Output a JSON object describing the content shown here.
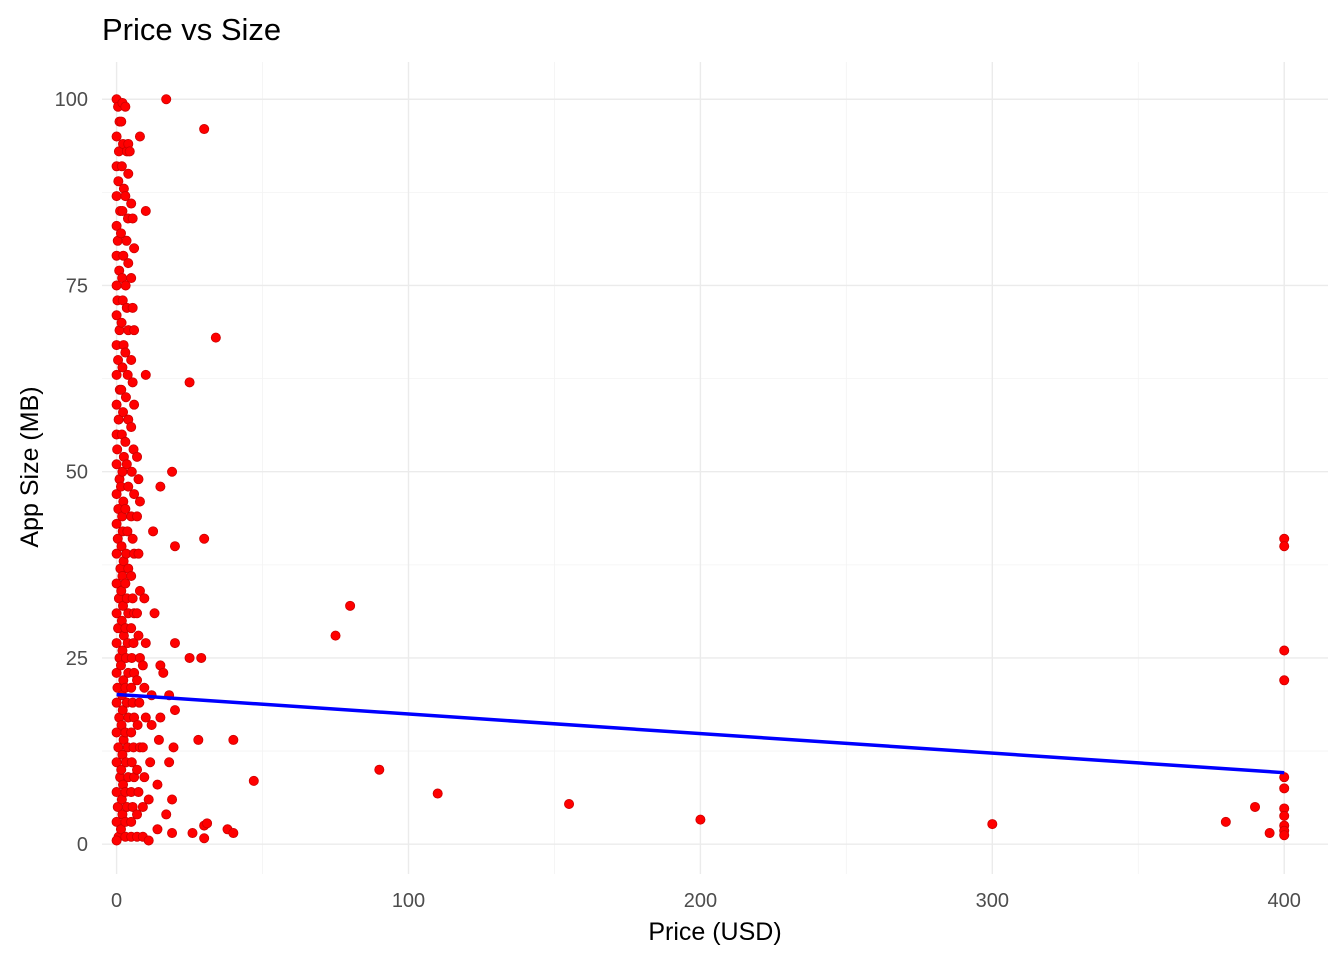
{
  "chart_data": {
    "type": "scatter",
    "title": "Price vs Size",
    "xlabel": "Price (USD)",
    "ylabel": "App Size (MB)",
    "xlim": [
      -5,
      415
    ],
    "ylim": [
      -4,
      105
    ],
    "x_ticks": [
      0,
      100,
      200,
      300,
      400
    ],
    "y_ticks": [
      0,
      25,
      50,
      75,
      100
    ],
    "grid": true,
    "legend": "none",
    "colors": {
      "points": "#ff0000",
      "point_stroke": "#cc0000",
      "trend": "#0000ff"
    },
    "trend_line": {
      "x": [
        0,
        400
      ],
      "y": [
        20.1,
        9.6
      ]
    },
    "series": [
      {
        "points": [
          [
            0,
            100
          ],
          [
            0.5,
            99
          ],
          [
            1,
            97
          ],
          [
            0,
            95
          ],
          [
            0.8,
            93
          ],
          [
            0,
            91
          ],
          [
            0.6,
            89
          ],
          [
            0,
            87
          ],
          [
            1.2,
            85
          ],
          [
            0,
            83
          ],
          [
            0.4,
            81
          ],
          [
            0,
            79
          ],
          [
            0.9,
            77
          ],
          [
            0,
            75
          ],
          [
            0.3,
            73
          ],
          [
            0,
            71
          ],
          [
            1,
            69
          ],
          [
            0,
            67
          ],
          [
            0.5,
            65
          ],
          [
            0,
            63
          ],
          [
            1.1,
            61
          ],
          [
            0,
            59
          ],
          [
            0.7,
            57
          ],
          [
            0,
            55
          ],
          [
            0.2,
            53
          ],
          [
            0,
            51
          ],
          [
            1,
            49
          ],
          [
            0,
            47
          ],
          [
            0.6,
            45
          ],
          [
            0,
            43
          ],
          [
            0.4,
            41
          ],
          [
            0,
            39
          ],
          [
            1.3,
            37
          ],
          [
            0,
            35
          ],
          [
            0.8,
            33
          ],
          [
            0,
            31
          ],
          [
            0.5,
            29
          ],
          [
            0,
            27
          ],
          [
            1,
            25
          ],
          [
            0,
            23
          ],
          [
            0.3,
            21
          ],
          [
            0,
            19
          ],
          [
            0.9,
            17
          ],
          [
            0,
            15
          ],
          [
            0.6,
            13
          ],
          [
            0,
            11
          ],
          [
            1.2,
            9
          ],
          [
            0,
            7
          ],
          [
            0.4,
            5
          ],
          [
            0,
            3
          ],
          [
            0.7,
            1
          ],
          [
            0,
            0.5
          ],
          [
            1.5,
            2
          ],
          [
            2,
            4
          ],
          [
            1.8,
            6
          ],
          [
            2.2,
            8
          ],
          [
            1.6,
            10
          ],
          [
            2,
            12
          ],
          [
            2.4,
            14
          ],
          [
            1.7,
            16
          ],
          [
            2.1,
            18
          ],
          [
            1.9,
            20
          ],
          [
            2.3,
            22
          ],
          [
            1.5,
            24
          ],
          [
            2,
            26
          ],
          [
            2.5,
            28
          ],
          [
            1.8,
            30
          ],
          [
            2.2,
            32
          ],
          [
            1.6,
            34
          ],
          [
            2,
            36
          ],
          [
            2.4,
            38
          ],
          [
            1.7,
            40
          ],
          [
            2.1,
            42
          ],
          [
            1.9,
            44
          ],
          [
            2.3,
            46
          ],
          [
            1.5,
            48
          ],
          [
            2,
            50
          ],
          [
            2.5,
            52
          ],
          [
            1.8,
            55
          ],
          [
            2.2,
            58
          ],
          [
            1.6,
            61
          ],
          [
            2,
            64
          ],
          [
            2.4,
            67
          ],
          [
            1.7,
            70
          ],
          [
            2.1,
            73
          ],
          [
            1.9,
            76
          ],
          [
            2.3,
            79
          ],
          [
            1.5,
            82
          ],
          [
            2,
            85
          ],
          [
            2.5,
            88
          ],
          [
            1.8,
            91
          ],
          [
            2.2,
            94
          ],
          [
            1.6,
            97
          ],
          [
            2,
            99.5
          ],
          [
            3,
            99
          ],
          [
            3,
            1
          ],
          [
            3,
            3
          ],
          [
            3.5,
            5
          ],
          [
            3,
            7
          ],
          [
            4,
            9
          ],
          [
            3.2,
            11
          ],
          [
            3.8,
            13
          ],
          [
            3,
            15
          ],
          [
            4,
            17
          ],
          [
            3.5,
            19
          ],
          [
            3,
            21
          ],
          [
            4,
            23
          ],
          [
            3.2,
            25
          ],
          [
            3.8,
            27
          ],
          [
            3,
            29
          ],
          [
            4,
            31
          ],
          [
            3.5,
            33
          ],
          [
            3,
            35
          ],
          [
            4,
            37
          ],
          [
            3.3,
            39
          ],
          [
            3.7,
            42
          ],
          [
            3,
            45
          ],
          [
            4,
            48
          ],
          [
            3.5,
            51
          ],
          [
            3,
            54
          ],
          [
            4,
            57
          ],
          [
            3.2,
            60
          ],
          [
            3.8,
            63
          ],
          [
            3,
            66
          ],
          [
            4,
            69
          ],
          [
            3.5,
            72
          ],
          [
            3.1,
            75
          ],
          [
            4,
            78
          ],
          [
            3.4,
            81
          ],
          [
            3.9,
            84
          ],
          [
            3,
            87
          ],
          [
            4,
            90
          ],
          [
            3.5,
            93
          ],
          [
            4,
            94
          ],
          [
            5,
            1
          ],
          [
            5,
            3
          ],
          [
            5.5,
            5
          ],
          [
            5,
            7
          ],
          [
            6,
            9
          ],
          [
            5.2,
            11
          ],
          [
            5.8,
            13
          ],
          [
            5,
            15
          ],
          [
            6,
            17
          ],
          [
            5.5,
            19
          ],
          [
            5,
            21
          ],
          [
            6,
            23
          ],
          [
            5.2,
            25
          ],
          [
            5.8,
            27
          ],
          [
            5,
            29
          ],
          [
            6,
            31
          ],
          [
            5.5,
            33
          ],
          [
            5,
            36
          ],
          [
            6,
            39
          ],
          [
            5.5,
            41
          ],
          [
            5,
            44
          ],
          [
            6,
            47
          ],
          [
            5.2,
            50
          ],
          [
            5.8,
            53
          ],
          [
            5,
            56
          ],
          [
            6,
            59
          ],
          [
            5.5,
            62
          ],
          [
            5,
            65
          ],
          [
            6,
            69
          ],
          [
            5.5,
            72
          ],
          [
            5,
            76
          ],
          [
            6,
            80
          ],
          [
            5.5,
            84
          ],
          [
            5,
            86
          ],
          [
            4.5,
            93
          ],
          [
            7,
            1
          ],
          [
            7,
            4
          ],
          [
            7.5,
            7
          ],
          [
            7,
            10
          ],
          [
            8,
            13
          ],
          [
            7.2,
            16
          ],
          [
            7.8,
            19
          ],
          [
            7,
            22
          ],
          [
            8,
            25
          ],
          [
            7.5,
            28
          ],
          [
            7,
            31
          ],
          [
            8,
            34
          ],
          [
            7.5,
            39
          ],
          [
            7,
            44
          ],
          [
            8,
            46
          ],
          [
            7.5,
            49
          ],
          [
            7,
            52
          ],
          [
            8,
            95
          ],
          [
            9,
            1
          ],
          [
            9,
            5
          ],
          [
            9.5,
            9
          ],
          [
            9,
            13
          ],
          [
            10,
            17
          ],
          [
            9.5,
            21
          ],
          [
            9,
            24
          ],
          [
            10,
            27
          ],
          [
            9.5,
            33
          ],
          [
            10,
            85
          ],
          [
            10,
            63
          ],
          [
            11,
            0.5
          ],
          [
            11,
            6
          ],
          [
            11.5,
            11
          ],
          [
            12,
            16
          ],
          [
            12,
            20
          ],
          [
            12.5,
            42
          ],
          [
            13,
            31
          ],
          [
            14,
            2
          ],
          [
            14,
            8
          ],
          [
            14.5,
            14
          ],
          [
            15,
            17
          ],
          [
            15,
            24
          ],
          [
            15,
            48
          ],
          [
            16,
            23
          ],
          [
            17,
            100
          ],
          [
            17,
            4
          ],
          [
            18,
            11
          ],
          [
            18,
            20
          ],
          [
            19,
            1.5
          ],
          [
            19,
            6
          ],
          [
            19.5,
            13
          ],
          [
            20,
            18
          ],
          [
            20,
            27
          ],
          [
            19,
            50
          ],
          [
            20,
            40
          ],
          [
            25,
            62
          ],
          [
            25,
            25
          ],
          [
            26,
            1.5
          ],
          [
            28,
            14
          ],
          [
            29,
            25
          ],
          [
            30,
            2.5
          ],
          [
            30,
            96
          ],
          [
            30,
            41
          ],
          [
            30,
            0.8
          ],
          [
            31,
            2.8
          ],
          [
            34,
            68
          ],
          [
            38,
            2
          ],
          [
            40,
            14
          ],
          [
            40,
            1.5
          ],
          [
            47,
            8.5
          ],
          [
            75,
            28
          ],
          [
            80,
            32
          ],
          [
            90,
            10
          ],
          [
            110,
            6.8
          ],
          [
            155,
            5.4
          ],
          [
            200,
            3.3
          ],
          [
            300,
            2.7
          ],
          [
            380,
            3
          ],
          [
            390,
            5
          ],
          [
            395,
            1.5
          ],
          [
            400,
            41
          ],
          [
            400,
            40
          ],
          [
            400,
            26
          ],
          [
            400,
            22
          ],
          [
            400,
            9
          ],
          [
            400,
            7.5
          ],
          [
            400,
            4.8
          ],
          [
            400,
            3.8
          ],
          [
            400,
            2.5
          ],
          [
            400,
            1.8
          ],
          [
            400,
            1.2
          ]
        ]
      }
    ]
  }
}
